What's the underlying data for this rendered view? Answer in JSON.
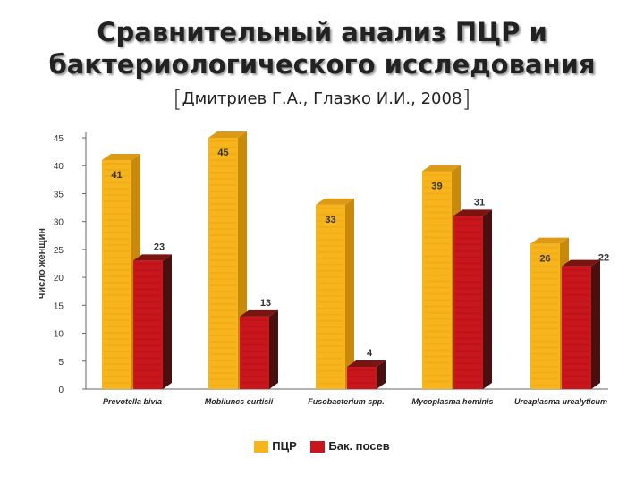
{
  "header": {
    "title_line1": "Сравнительный анализ ПЦР и",
    "title_line2": "бактериологического исследования",
    "citation": "Дмитриев Г.А., Глазко И.И., 2008"
  },
  "chart_data": {
    "type": "bar",
    "categories": [
      "Prevotella bivia",
      "Mobiluncs curtisii",
      "Fusobacterium spp.",
      "Mycoplasma hominis",
      "Ureaplasma urealyticum"
    ],
    "series": [
      {
        "name": "ПЦР",
        "values": [
          41,
          45,
          33,
          39,
          26
        ],
        "color": "#f7b51d",
        "side_color": "#c98a0c",
        "top_color": "#dc9a16"
      },
      {
        "name": "Бак. посев",
        "values": [
          23,
          13,
          4,
          31,
          22
        ],
        "color": "#c8161c",
        "side_color": "#4a1010",
        "top_color": "#7a1410"
      }
    ],
    "ylabel": "число женщин",
    "ylim": [
      0,
      45
    ],
    "yticks": [
      0,
      5,
      10,
      15,
      20,
      25,
      30,
      35,
      40,
      45
    ],
    "grid": false,
    "legend_position": "bottom"
  }
}
